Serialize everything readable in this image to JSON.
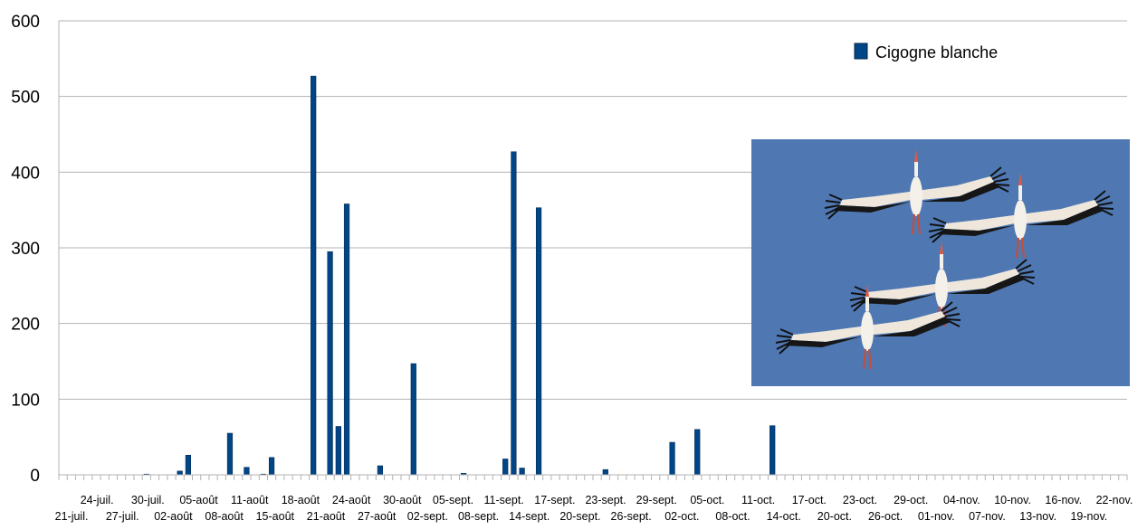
{
  "chart_data": {
    "type": "bar",
    "title": "",
    "xlabel": "",
    "ylabel": "",
    "ylim": [
      0,
      600
    ],
    "y_ticks": [
      0,
      100,
      200,
      300,
      400,
      500,
      600
    ],
    "grid": "horizontal",
    "legend_position": "top-right",
    "series": [
      {
        "name": "Cigogne blanche",
        "color": "#004586",
        "values": [
          {
            "date": "2013-07-28",
            "value": 1
          },
          {
            "date": "2013-08-01",
            "value": 5
          },
          {
            "date": "2013-08-02",
            "value": 26
          },
          {
            "date": "2013-08-07",
            "value": 55
          },
          {
            "date": "2013-08-09",
            "value": 10
          },
          {
            "date": "2013-08-11",
            "value": 1
          },
          {
            "date": "2013-08-12",
            "value": 23
          },
          {
            "date": "2013-08-17",
            "value": 527
          },
          {
            "date": "2013-08-19",
            "value": 295
          },
          {
            "date": "2013-08-20",
            "value": 64
          },
          {
            "date": "2013-08-21",
            "value": 358
          },
          {
            "date": "2013-08-25",
            "value": 12
          },
          {
            "date": "2013-08-29",
            "value": 147
          },
          {
            "date": "2013-09-04",
            "value": 2
          },
          {
            "date": "2013-09-09",
            "value": 21
          },
          {
            "date": "2013-09-10",
            "value": 427
          },
          {
            "date": "2013-09-11",
            "value": 9
          },
          {
            "date": "2013-09-13",
            "value": 353
          },
          {
            "date": "2013-09-21",
            "value": 7
          },
          {
            "date": "2013-09-29",
            "value": 43
          },
          {
            "date": "2013-10-02",
            "value": 60
          },
          {
            "date": "2013-10-11",
            "value": 65
          }
        ]
      }
    ],
    "x_axis": {
      "start": "2013-07-18",
      "end": "2013-11-22",
      "tick_labels": [
        "21-juil.",
        "24-juil.",
        "27-juil.",
        "30-juil.",
        "02-août",
        "05-août",
        "08-août",
        "11-août",
        "15-août",
        "18-août",
        "21-août",
        "24-août",
        "27-août",
        "30-août",
        "02-sept.",
        "05-sept.",
        "08-sept.",
        "11-sept.",
        "14-sept.",
        "17-sept.",
        "20-sept.",
        "23-sept.",
        "26-sept.",
        "29-sept.",
        "02-oct.",
        "05-oct.",
        "08-oct.",
        "11-oct.",
        "14-oct.",
        "17-oct.",
        "20-oct.",
        "23-oct.",
        "26-oct.",
        "29-oct.",
        "01-nov.",
        "04-nov.",
        "07-nov.",
        "10-nov.",
        "13-nov.",
        "16-nov.",
        "19-nov.",
        "22-nov."
      ]
    }
  },
  "photo": {
    "subject": "white storks in flight",
    "sky_color": "#4f78b3"
  }
}
